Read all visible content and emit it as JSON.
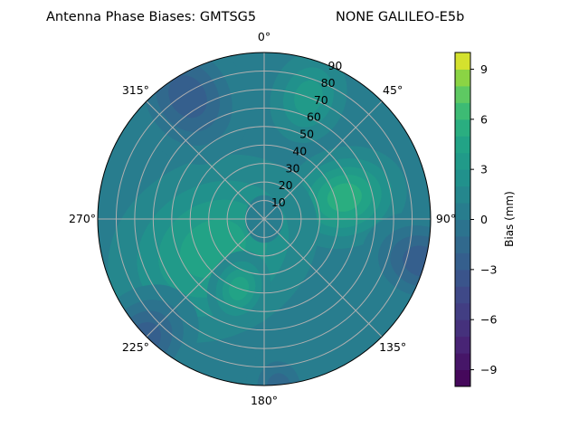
{
  "chart_data": {
    "type": "heatmap",
    "subtype": "polar-filled-contour",
    "title_left": "Antenna Phase Biases: GMTSG5",
    "title_right": "NONE GALILEO-E5b",
    "angular_axis": {
      "direction": "clockwise",
      "zero": "north",
      "tick_labels": [
        "0°",
        "45°",
        "90°",
        "135°",
        "180°",
        "225°",
        "270°",
        "315°"
      ],
      "tick_values": [
        0,
        45,
        90,
        135,
        180,
        225,
        270,
        315
      ]
    },
    "radial_axis": {
      "range": [
        0,
        90
      ],
      "tick_values": [
        10,
        20,
        30,
        40,
        50,
        60,
        70,
        80,
        90
      ],
      "tick_labels": [
        "10",
        "20",
        "30",
        "40",
        "50",
        "60",
        "70",
        "80",
        "90"
      ]
    },
    "grid": true,
    "colormap": "viridis",
    "colorbar": {
      "label": "Bias (mm)",
      "range": [
        -10,
        10
      ],
      "level_step": 1,
      "tick_values": [
        -9,
        -6,
        -3,
        0,
        3,
        6,
        9
      ],
      "tick_labels": [
        "−9",
        "−6",
        "−3",
        "0",
        "3",
        "6",
        "9"
      ],
      "placement": "right"
    },
    "field": {
      "base_value": 0.5,
      "features": [
        {
          "azimuth": 75,
          "zenith": 45,
          "peak": 5.5,
          "spread": 22
        },
        {
          "azimuth": 240,
          "zenith": 32,
          "peak": 4.2,
          "spread": 40
        },
        {
          "azimuth": 200,
          "zenith": 40,
          "peak": 4.5,
          "spread": 14
        },
        {
          "azimuth": 20,
          "zenith": 70,
          "peak": 3.2,
          "spread": 18
        },
        {
          "azimuth": 0,
          "zenith": 0,
          "peak": 0,
          "spread": 14
        },
        {
          "azimuth": 328,
          "zenith": 78,
          "peak": -3.5,
          "spread": 26
        },
        {
          "azimuth": 105,
          "zenith": 88,
          "peak": -3.2,
          "spread": 22
        },
        {
          "azimuth": 225,
          "zenith": 92,
          "peak": -3.5,
          "spread": 22
        },
        {
          "azimuth": 175,
          "zenith": 92,
          "peak": -2.5,
          "spread": 16
        }
      ]
    }
  }
}
